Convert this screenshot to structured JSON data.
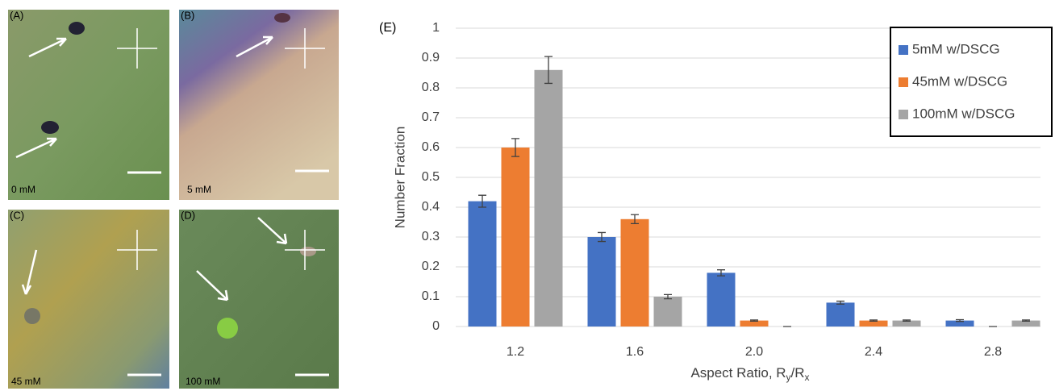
{
  "panels": [
    {
      "label": "(A)",
      "caption": "0 mM"
    },
    {
      "label": "(B)",
      "caption": "5 mM"
    },
    {
      "label": "(C)",
      "caption": "45 mM"
    },
    {
      "label": "(D)",
      "caption": "100 mM"
    }
  ],
  "chart_data": {
    "type": "bar",
    "panel_label": "(E)",
    "y_label": "Number Fraction",
    "x_label": [
      "Aspect Ratio, R",
      "y",
      "/R",
      "x"
    ],
    "categories": [
      "1.2",
      "1.6",
      "2.0",
      "2.4",
      "2.8"
    ],
    "series": [
      {
        "name": "5mM w/DSCG",
        "color": "#4472c4",
        "values": [
          0.42,
          0.3,
          0.18,
          0.08,
          0.02
        ],
        "errors": [
          0.02,
          0.015,
          0.01,
          0.005,
          0.003
        ]
      },
      {
        "name": "45mM w/DSCG",
        "color": "#ed7d31",
        "values": [
          0.6,
          0.36,
          0.02,
          0.02,
          0
        ],
        "errors": [
          0.03,
          0.015,
          0.002,
          0.002,
          0
        ]
      },
      {
        "name": "100mM w/DSCG",
        "color": "#a5a5a5",
        "values": [
          0.86,
          0.1,
          0,
          0.02,
          0.02
        ],
        "errors": [
          0.045,
          0.007,
          0,
          0.002,
          0.002
        ]
      }
    ],
    "ylim": [
      0,
      1
    ],
    "yticks": [
      0,
      0.1,
      0.2,
      0.3,
      0.4,
      0.5,
      0.6,
      0.7,
      0.8,
      0.9,
      1
    ],
    "grid": true,
    "legend": "top-right"
  }
}
